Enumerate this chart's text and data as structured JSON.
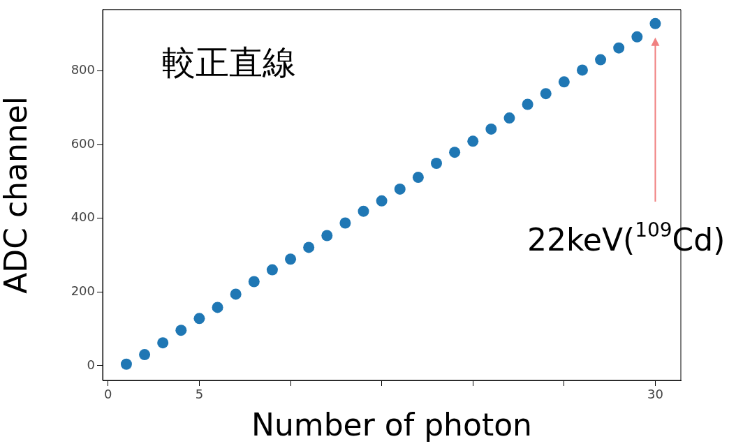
{
  "chart_data": {
    "type": "scatter",
    "title": "較正直線",
    "xlabel": "Number of photon",
    "ylabel": "ADC channel",
    "x": [
      1,
      2,
      3,
      4,
      5,
      6,
      7,
      8,
      9,
      10,
      11,
      12,
      13,
      14,
      15,
      16,
      17,
      18,
      19,
      20,
      21,
      22,
      23,
      24,
      25,
      26,
      27,
      28,
      29,
      30
    ],
    "series": [
      {
        "color": "#1f77b4",
        "values": [
          4,
          30,
          62,
          96,
          128,
          158,
          194,
          228,
          260,
          289,
          321,
          353,
          387,
          419,
          447,
          479,
          511,
          549,
          579,
          609,
          642,
          672,
          709,
          738,
          770,
          802,
          830,
          862,
          892,
          928
        ]
      }
    ],
    "xlim": [
      -0.3,
      31.4
    ],
    "xticks": [
      0,
      5,
      {
        "value": 10,
        "label": null
      },
      {
        "value": 15,
        "label": null
      },
      {
        "value": 20,
        "label": null
      },
      {
        "value": 25,
        "label": null
      },
      30
    ],
    "ylim": [
      -40,
      966
    ],
    "yticks": [
      0,
      200,
      400,
      600,
      800
    ],
    "annotations": [
      "22keV($^{109}$Cd)"
    ],
    "marker": "circle",
    "grid": false,
    "legend": false
  }
}
